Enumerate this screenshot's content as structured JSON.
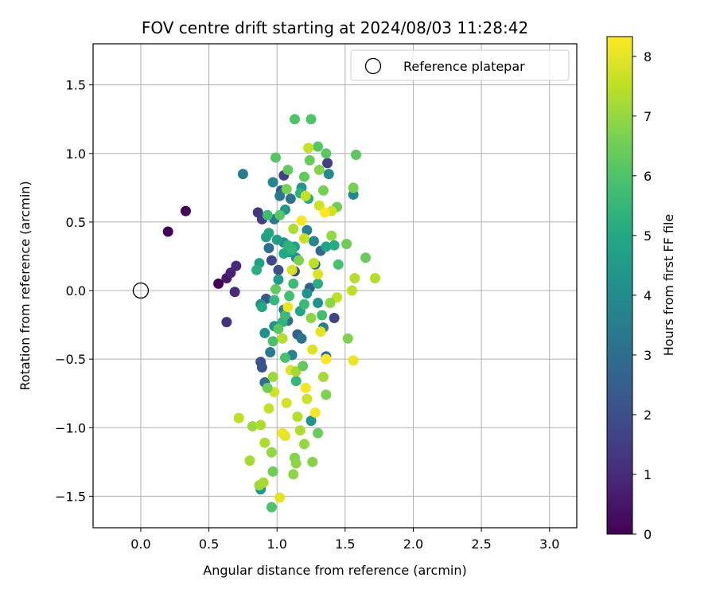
{
  "chart_data": {
    "type": "scatter",
    "title": "FOV centre drift starting at 2024/08/03 11:28:42",
    "xlabel": "Angular distance from reference (arcmin)",
    "ylabel": "Rotation from reference (arcmin)",
    "xlim": [
      -0.35,
      3.2
    ],
    "ylim": [
      -1.73,
      1.8
    ],
    "xticks": [
      0.0,
      0.5,
      1.0,
      1.5,
      2.0,
      2.5,
      3.0
    ],
    "xtick_labels": [
      "0.0",
      "0.5",
      "1.0",
      "1.5",
      "2.0",
      "2.5",
      "3.0"
    ],
    "yticks": [
      -1.5,
      -1.0,
      -0.5,
      0.0,
      0.5,
      1.0,
      1.5
    ],
    "ytick_labels": [
      "−1.5",
      "−1.0",
      "−0.5",
      "0.0",
      "0.5",
      "1.0",
      "1.5"
    ],
    "grid": true,
    "legend": {
      "position": "top-right",
      "entries": [
        "Reference platepar"
      ]
    },
    "reference_point": {
      "x": 0.0,
      "y": 0.0,
      "label": "Reference platepar"
    },
    "colorbar": {
      "label": "Hours from first FF file",
      "colormap": "viridis",
      "range": [
        0,
        8.33
      ],
      "ticks": [
        0,
        1,
        2,
        3,
        4,
        5,
        6,
        7,
        8
      ],
      "tick_labels": [
        "0",
        "1",
        "2",
        "3",
        "4",
        "5",
        "6",
        "7",
        "8"
      ]
    },
    "points": [
      {
        "x": 0.57,
        "y": 0.05,
        "c": 0.0
      },
      {
        "x": 0.2,
        "y": 0.43,
        "c": 0.05
      },
      {
        "x": 0.33,
        "y": 0.58,
        "c": 0.1
      },
      {
        "x": 0.63,
        "y": 0.09,
        "c": 0.6
      },
      {
        "x": 0.66,
        "y": 0.13,
        "c": 0.8
      },
      {
        "x": 0.7,
        "y": 0.18,
        "c": 1.0
      },
      {
        "x": 0.69,
        "y": -0.01,
        "c": 1.0
      },
      {
        "x": 0.63,
        "y": -0.23,
        "c": 1.2
      },
      {
        "x": 0.86,
        "y": 0.57,
        "c": 1.3
      },
      {
        "x": 0.89,
        "y": 0.52,
        "c": 1.5
      },
      {
        "x": 1.05,
        "y": 0.84,
        "c": 1.6
      },
      {
        "x": 1.37,
        "y": 0.93,
        "c": 1.6
      },
      {
        "x": 1.42,
        "y": -0.2,
        "c": 1.7
      },
      {
        "x": 0.96,
        "y": 0.22,
        "c": 1.8
      },
      {
        "x": 1.13,
        "y": 0.14,
        "c": 1.9
      },
      {
        "x": 1.01,
        "y": 0.15,
        "c": 2.0
      },
      {
        "x": 0.88,
        "y": -0.52,
        "c": 2.1
      },
      {
        "x": 0.89,
        "y": -0.56,
        "c": 2.2
      },
      {
        "x": 0.92,
        "y": -0.06,
        "c": 2.3
      },
      {
        "x": 1.03,
        "y": 0.73,
        "c": 2.4
      },
      {
        "x": 1.24,
        "y": 0.02,
        "c": 2.5
      },
      {
        "x": 1.15,
        "y": -0.32,
        "c": 2.6
      },
      {
        "x": 1.28,
        "y": 0.19,
        "c": 2.7
      },
      {
        "x": 1.32,
        "y": 0.29,
        "c": 2.8
      },
      {
        "x": 1.08,
        "y": -0.22,
        "c": 2.9
      },
      {
        "x": 0.91,
        "y": -0.67,
        "c": 3.0
      },
      {
        "x": 0.94,
        "y": 0.31,
        "c": 3.0
      },
      {
        "x": 1.36,
        "y": -0.48,
        "c": 3.1
      },
      {
        "x": 1.1,
        "y": 0.67,
        "c": 3.2
      },
      {
        "x": 1.18,
        "y": -0.35,
        "c": 3.2
      },
      {
        "x": 1.02,
        "y": 0.69,
        "c": 3.3
      },
      {
        "x": 0.98,
        "y": 0.52,
        "c": 3.3
      },
      {
        "x": 0.95,
        "y": -0.45,
        "c": 3.4
      },
      {
        "x": 1.34,
        "y": -0.27,
        "c": 3.5
      },
      {
        "x": 0.75,
        "y": 0.85,
        "c": 3.5
      },
      {
        "x": 1.05,
        "y": -0.14,
        "c": 3.6
      },
      {
        "x": 1.22,
        "y": 0.44,
        "c": 3.7
      },
      {
        "x": 1.11,
        "y": -0.47,
        "c": 3.7
      },
      {
        "x": 0.97,
        "y": 0.79,
        "c": 3.8
      },
      {
        "x": 1.27,
        "y": 0.36,
        "c": 3.8
      },
      {
        "x": 1.56,
        "y": 0.7,
        "c": 3.9
      },
      {
        "x": 1.38,
        "y": 0.85,
        "c": 3.9
      },
      {
        "x": 1.05,
        "y": 0.35,
        "c": 4.0
      },
      {
        "x": 0.88,
        "y": -0.1,
        "c": 4.0
      },
      {
        "x": 1.14,
        "y": 0.24,
        "c": 4.1
      },
      {
        "x": 0.91,
        "y": -0.31,
        "c": 4.1
      },
      {
        "x": 0.98,
        "y": -0.26,
        "c": 4.2
      },
      {
        "x": 1.3,
        "y": -0.09,
        "c": 4.2
      },
      {
        "x": 1.22,
        "y": -0.02,
        "c": 4.3
      },
      {
        "x": 1.25,
        "y": -0.95,
        "c": 4.3
      },
      {
        "x": 1.06,
        "y": 0.59,
        "c": 4.4
      },
      {
        "x": 1.18,
        "y": 0.75,
        "c": 4.4
      },
      {
        "x": 0.88,
        "y": -1.45,
        "c": 4.5
      },
      {
        "x": 1.01,
        "y": 0.08,
        "c": 4.5
      },
      {
        "x": 1.0,
        "y": 0.37,
        "c": 4.6
      },
      {
        "x": 1.09,
        "y": 0.28,
        "c": 4.6
      },
      {
        "x": 0.92,
        "y": 0.39,
        "c": 4.7
      },
      {
        "x": 0.87,
        "y": 0.2,
        "c": 4.7
      },
      {
        "x": 1.13,
        "y": 0.32,
        "c": 4.8
      },
      {
        "x": 1.36,
        "y": 0.32,
        "c": 4.8
      },
      {
        "x": 0.94,
        "y": 0.42,
        "c": 4.9
      },
      {
        "x": 1.17,
        "y": -0.15,
        "c": 4.9
      },
      {
        "x": 0.89,
        "y": -0.12,
        "c": 5.0
      },
      {
        "x": 1.05,
        "y": 0.27,
        "c": 5.0
      },
      {
        "x": 1.23,
        "y": 0.67,
        "c": 5.1
      },
      {
        "x": 1.42,
        "y": 0.33,
        "c": 5.1
      },
      {
        "x": 0.85,
        "y": 0.15,
        "c": 5.2
      },
      {
        "x": 1.3,
        "y": 0.05,
        "c": 5.2
      },
      {
        "x": 1.08,
        "y": 0.33,
        "c": 5.3
      },
      {
        "x": 1.17,
        "y": 0.71,
        "c": 5.3
      },
      {
        "x": 1.04,
        "y": -0.23,
        "c": 5.4
      },
      {
        "x": 1.11,
        "y": 0.3,
        "c": 5.4
      },
      {
        "x": 1.14,
        "y": -0.66,
        "c": 5.5
      },
      {
        "x": 0.98,
        "y": -0.07,
        "c": 5.5
      },
      {
        "x": 1.2,
        "y": -0.1,
        "c": 5.6
      },
      {
        "x": 1.06,
        "y": -0.18,
        "c": 5.6
      },
      {
        "x": 0.93,
        "y": 0.55,
        "c": 5.7
      },
      {
        "x": 1.12,
        "y": 0.05,
        "c": 5.7
      },
      {
        "x": 1.33,
        "y": -0.18,
        "c": 5.8
      },
      {
        "x": 1.09,
        "y": -0.04,
        "c": 5.8
      },
      {
        "x": 1.45,
        "y": 0.19,
        "c": 5.9
      },
      {
        "x": 0.97,
        "y": -0.37,
        "c": 5.9
      },
      {
        "x": 1.25,
        "y": 1.25,
        "c": 6.0
      },
      {
        "x": 1.13,
        "y": 1.25,
        "c": 6.0
      },
      {
        "x": 0.99,
        "y": 0.97,
        "c": 6.1
      },
      {
        "x": 1.3,
        "y": 1.05,
        "c": 6.1
      },
      {
        "x": 1.36,
        "y": 1.0,
        "c": 6.2
      },
      {
        "x": 1.58,
        "y": 0.99,
        "c": 6.2
      },
      {
        "x": 1.2,
        "y": 0.83,
        "c": 6.3
      },
      {
        "x": 1.08,
        "y": 0.88,
        "c": 6.3
      },
      {
        "x": 1.24,
        "y": 0.95,
        "c": 6.4
      },
      {
        "x": 1.65,
        "y": 0.24,
        "c": 6.4
      },
      {
        "x": 1.51,
        "y": 0.34,
        "c": 6.5
      },
      {
        "x": 1.44,
        "y": 0.61,
        "c": 6.5
      },
      {
        "x": 1.56,
        "y": 0.75,
        "c": 6.6
      },
      {
        "x": 1.34,
        "y": 0.73,
        "c": 6.6
      },
      {
        "x": 1.52,
        "y": -0.35,
        "c": 6.7
      },
      {
        "x": 1.36,
        "y": -0.76,
        "c": 6.7
      },
      {
        "x": 1.26,
        "y": -1.25,
        "c": 6.8
      },
      {
        "x": 1.13,
        "y": -1.22,
        "c": 6.8
      },
      {
        "x": 1.14,
        "y": -1.26,
        "c": 6.9
      },
      {
        "x": 1.12,
        "y": -1.34,
        "c": 6.9
      },
      {
        "x": 0.96,
        "y": -1.58,
        "c": 6.0
      },
      {
        "x": 0.97,
        "y": -1.32,
        "c": 6.5
      },
      {
        "x": 1.2,
        "y": -1.12,
        "c": 7.0
      },
      {
        "x": 1.3,
        "y": -1.04,
        "c": 6.4
      },
      {
        "x": 0.96,
        "y": -1.18,
        "c": 7.0
      },
      {
        "x": 0.82,
        "y": -0.99,
        "c": 7.1
      },
      {
        "x": 0.87,
        "y": -1.42,
        "c": 7.1
      },
      {
        "x": 0.9,
        "y": -1.4,
        "c": 7.2
      },
      {
        "x": 0.8,
        "y": -1.24,
        "c": 7.2
      },
      {
        "x": 0.91,
        "y": -1.11,
        "c": 7.3
      },
      {
        "x": 1.17,
        "y": -1.02,
        "c": 7.3
      },
      {
        "x": 1.57,
        "y": 0.09,
        "c": 7.4
      },
      {
        "x": 1.72,
        "y": 0.09,
        "c": 7.4
      },
      {
        "x": 1.55,
        "y": 0.0,
        "c": 7.5
      },
      {
        "x": 1.44,
        "y": -0.05,
        "c": 7.5
      },
      {
        "x": 1.23,
        "y": 1.04,
        "c": 7.6
      },
      {
        "x": 1.21,
        "y": 0.69,
        "c": 7.6
      },
      {
        "x": 1.31,
        "y": 0.62,
        "c": 7.7
      },
      {
        "x": 1.4,
        "y": 0.58,
        "c": 7.7
      },
      {
        "x": 1.07,
        "y": -0.82,
        "c": 7.8
      },
      {
        "x": 0.98,
        "y": -0.74,
        "c": 7.8
      },
      {
        "x": 1.1,
        "y": -0.58,
        "c": 7.9
      },
      {
        "x": 1.26,
        "y": -0.43,
        "c": 7.9
      },
      {
        "x": 1.06,
        "y": -1.06,
        "c": 8.0
      },
      {
        "x": 1.02,
        "y": -1.51,
        "c": 8.0
      },
      {
        "x": 1.04,
        "y": -1.04,
        "c": 8.1
      },
      {
        "x": 1.56,
        "y": -0.51,
        "c": 8.1
      },
      {
        "x": 1.28,
        "y": -0.89,
        "c": 8.2
      },
      {
        "x": 0.72,
        "y": -0.93,
        "c": 7.5
      },
      {
        "x": 0.88,
        "y": -0.98,
        "c": 7.3
      },
      {
        "x": 1.21,
        "y": -0.71,
        "c": 8.2
      },
      {
        "x": 1.36,
        "y": -0.5,
        "c": 8.3
      },
      {
        "x": 1.32,
        "y": -0.3,
        "c": 8.0
      },
      {
        "x": 1.11,
        "y": 0.15,
        "c": 7.8
      },
      {
        "x": 1.18,
        "y": 0.51,
        "c": 8.2
      },
      {
        "x": 1.35,
        "y": 0.57,
        "c": 8.3
      },
      {
        "x": 1.3,
        "y": 0.12,
        "c": 7.9
      },
      {
        "x": 1.2,
        "y": 0.38,
        "c": 7.6
      },
      {
        "x": 1.04,
        "y": -0.35,
        "c": 7.4
      },
      {
        "x": 1.14,
        "y": -0.59,
        "c": 7.2
      },
      {
        "x": 0.94,
        "y": -0.86,
        "c": 7.6
      },
      {
        "x": 1.08,
        "y": -0.12,
        "c": 8.1
      },
      {
        "x": 1.02,
        "y": 0.55,
        "c": 6.1
      },
      {
        "x": 0.99,
        "y": 0.01,
        "c": 6.3
      },
      {
        "x": 1.16,
        "y": 0.22,
        "c": 6.7
      },
      {
        "x": 1.25,
        "y": -0.2,
        "c": 6.9
      },
      {
        "x": 1.4,
        "y": 0.4,
        "c": 7.0
      },
      {
        "x": 0.97,
        "y": -0.63,
        "c": 7.1
      },
      {
        "x": 1.07,
        "y": 0.74,
        "c": 6.6
      },
      {
        "x": 1.31,
        "y": 0.88,
        "c": 6.8
      },
      {
        "x": 1.22,
        "y": -0.79,
        "c": 7.7
      },
      {
        "x": 1.15,
        "y": -0.92,
        "c": 7.4
      },
      {
        "x": 1.01,
        "y": -0.28,
        "c": 6.2
      },
      {
        "x": 1.12,
        "y": 0.45,
        "c": 7.3
      },
      {
        "x": 1.27,
        "y": 0.2,
        "c": 7.5
      },
      {
        "x": 1.39,
        "y": -0.09,
        "c": 6.9
      },
      {
        "x": 0.93,
        "y": -0.71,
        "c": 6.5
      },
      {
        "x": 1.06,
        "y": -0.49,
        "c": 5.9
      },
      {
        "x": 1.19,
        "y": -0.55,
        "c": 6.3
      },
      {
        "x": 1.34,
        "y": -0.63,
        "c": 7.2
      }
    ]
  }
}
